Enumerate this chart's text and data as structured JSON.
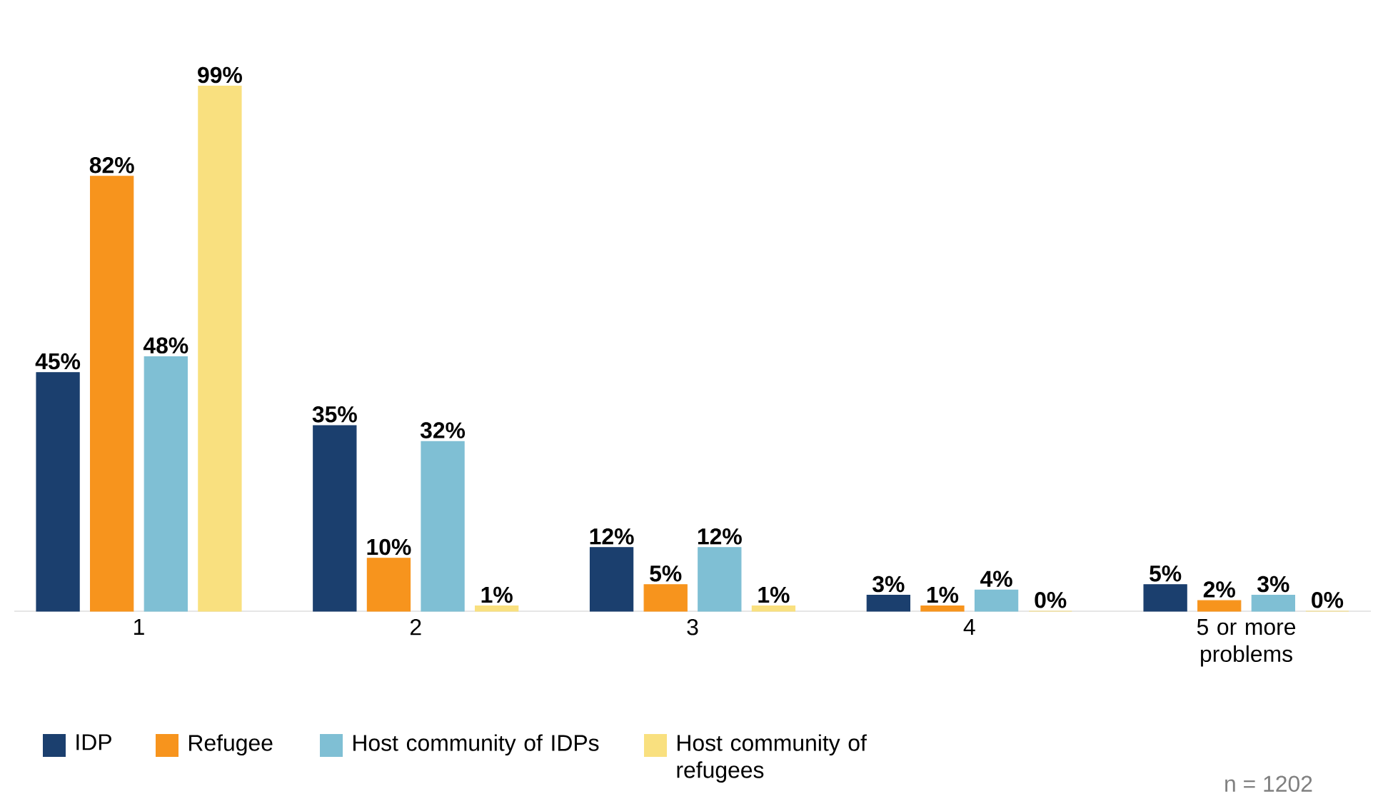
{
  "chart_data": {
    "type": "bar",
    "categories": [
      "1",
      "2",
      "3",
      "4",
      "5 or more problems"
    ],
    "series": [
      {
        "name": "IDP",
        "color": "#1b3f6e",
        "values": [
          45,
          35,
          12,
          3,
          5
        ],
        "value_labels": [
          "45%",
          "35%",
          "12%",
          "3%",
          "5%"
        ]
      },
      {
        "name": "Refugee",
        "color": "#f7941d",
        "values": [
          82,
          10,
          5,
          1,
          2
        ],
        "value_labels": [
          "82%",
          "10%",
          "5%",
          "1%",
          "2%"
        ]
      },
      {
        "name": "Host community of IDPs",
        "color": "#7fbfd4",
        "values": [
          48,
          32,
          12,
          4,
          3
        ],
        "value_labels": [
          "48%",
          "32%",
          "12%",
          "4%",
          "3%"
        ]
      },
      {
        "name": "Host community of refugees",
        "color": "#f9e07f",
        "values": [
          99,
          1,
          1,
          0,
          0
        ],
        "value_labels": [
          "99%",
          "1%",
          "1%",
          "0%",
          "0%"
        ]
      }
    ],
    "legend": "bottom",
    "annotations": [
      "n = 1202"
    ]
  }
}
